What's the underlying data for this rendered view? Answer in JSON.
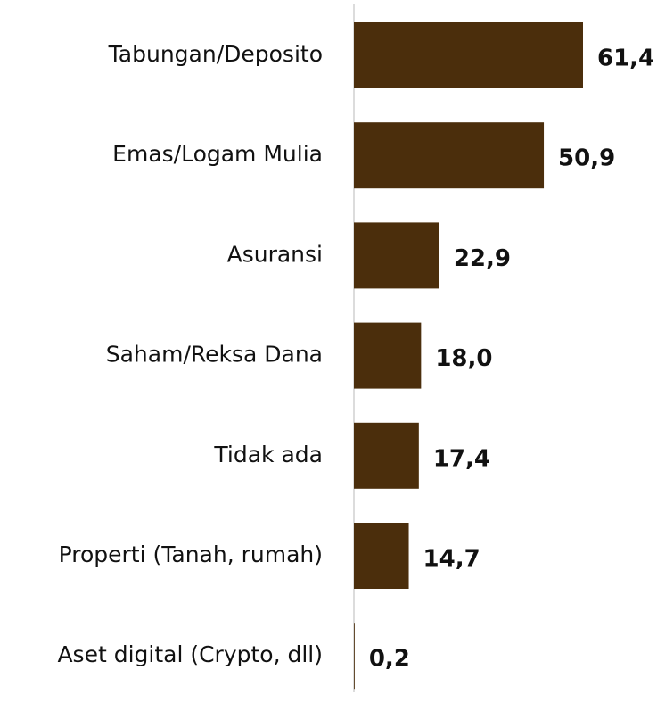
{
  "chart_data": {
    "type": "bar",
    "orientation": "horizontal",
    "categories": [
      "Tabungan/Deposito",
      "Emas/Logam Mulia",
      "Asuransi",
      "Saham/Reksa Dana",
      "Tidak ada",
      "Properti (Tanah, rumah)",
      "Aset digital (Crypto, dll)"
    ],
    "values": [
      61.4,
      50.9,
      22.9,
      18.0,
      17.4,
      14.7,
      0.2
    ],
    "value_labels": [
      "61,4",
      "50,9",
      "22,9",
      "18,0",
      "17,4",
      "14,7",
      "0,2"
    ],
    "color": "#4b2e0c"
  }
}
